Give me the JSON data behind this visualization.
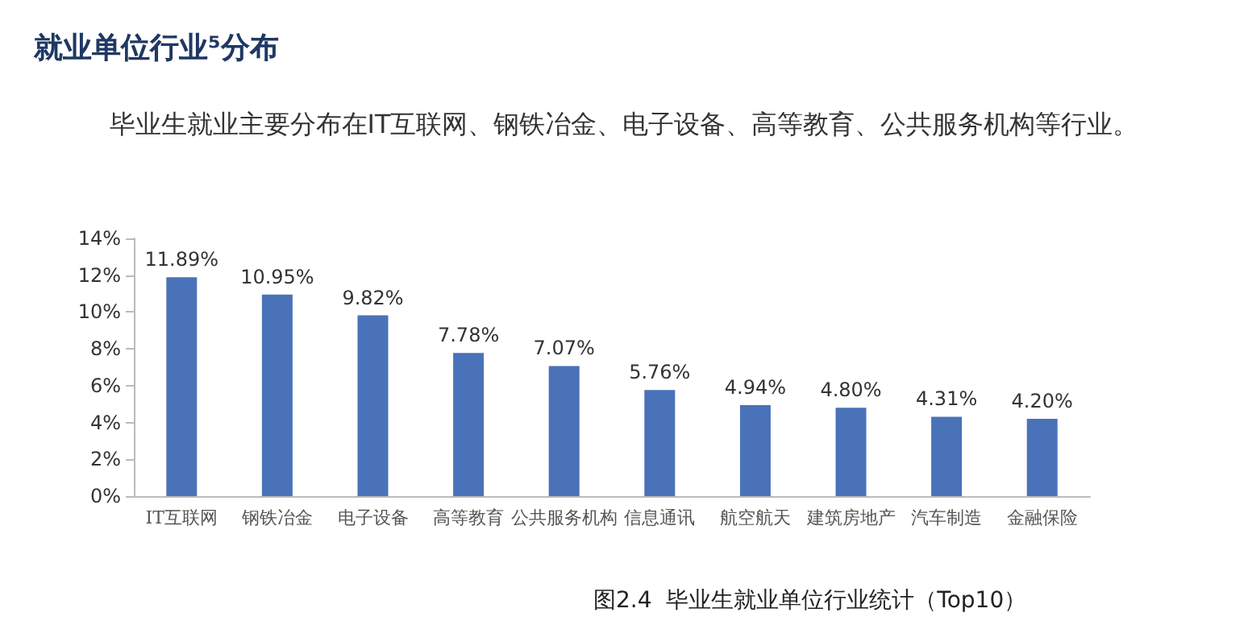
{
  "chart_data": {
    "type": "bar",
    "title": "就业单位行业⁵分布",
    "subtitle": "毕业生就业主要分布在IT互联网、钢铁冶金、电子设备、高等教育、公共服务机构等行业。",
    "categories": [
      "IT互联网",
      "钢铁冶金",
      "电子设备",
      "高等教育",
      "公共服务机构",
      "信息通讯",
      "航空航天",
      "建筑房地产",
      "汽车制造",
      "金融保险"
    ],
    "values": [
      11.89,
      10.95,
      9.82,
      7.78,
      7.07,
      5.76,
      4.94,
      4.8,
      4.31,
      4.2
    ],
    "value_labels": [
      "11.89%",
      "10.95%",
      "9.82%",
      "7.78%",
      "7.07%",
      "5.76%",
      "4.94%",
      "4.80%",
      "4.31%",
      "4.20%"
    ],
    "color": "#4a72b8",
    "ylim": [
      0,
      14
    ],
    "yticks": [
      {
        "value": 0,
        "label": "0%"
      },
      {
        "value": 2,
        "label": "2%"
      },
      {
        "value": 4,
        "label": "4%"
      },
      {
        "value": 6,
        "label": "6%"
      },
      {
        "value": 8,
        "label": "8%"
      },
      {
        "value": 10,
        "label": "10%"
      },
      {
        "value": 12,
        "label": "12%"
      },
      {
        "value": 14,
        "label": "14%"
      }
    ],
    "grid": false,
    "annotations": [
      "图2.4  毕业生就业单位行业统计（Top10）"
    ]
  }
}
